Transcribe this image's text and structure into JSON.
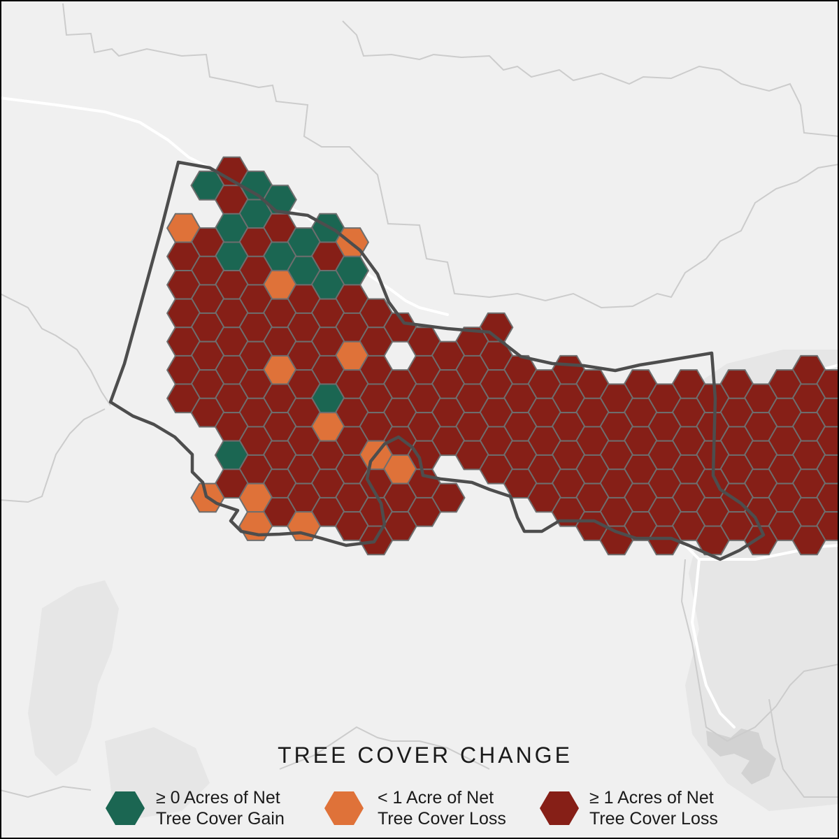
{
  "legend": {
    "title": "TREE COVER CHANGE",
    "items": [
      {
        "line1": "≥ 0 Acres of Net",
        "line2": "Tree Cover Gain",
        "color": "#1b6652"
      },
      {
        "line1": "< 1 Acre of Net",
        "line2": "Tree Cover Loss",
        "color": "#df7239"
      },
      {
        "line1": "≥ 1 Acres of Net",
        "line2": "Tree Cover Loss",
        "color": "#861f17"
      }
    ]
  },
  "colors": {
    "background": "#f0f0f0",
    "boundary": "#4d4d4d",
    "hex_stroke": "#6e6e6e",
    "roads": "#ffffff",
    "county_lines": "#cccccc"
  },
  "hex_grid": {
    "class_codes": {
      "G": "gain",
      "O": "small-loss",
      "R": "loss"
    },
    "rows": [
      "......R.............................",
      ".....GGG............................",
      ".....GRGG...........................",
      "......GGR...........................",
      "....ORGRR.G.........................",
      ".....RGRRGGO........................",
      "....RRGGGGR.........................",
      ".....RRRGGGG........................",
      "....RRRRORGR........................",
      ".....RRRRRRRR.......................",
      "....RRRRRRRRR.......................",
      "....GRRRRRRRRR..RR..................",
      "....RRRORGRRRRRRRR..................",
      "....RRRRRRROR.RRRRR.................",
      "...ORRRRORRRRRRRRRRRR..R...O..R.....",
      "....ORRRRRRRRRRRRRRRRRRRRRRRRRRRRR..",
      "...GRRRRRRGRRRRRRRRRRRRRRRRRRRRRR...",
      "....RRRRRRRRRRRRRRRRRRRRRRRRRRRRRR..",
      ".....ORRRRORRRRRRRRRRRRRRRRRRRRRR...",
      "......RRRRRRRRRRRRRRRRRRRRRRRRRRRR..",
      ".....RGRRGROOGRRRRRRRRRRRRRRRRRROR..",
      "......RRRRRRROO..RRRRRRRRRRRRRRRRR..",
      "......RRRRRRRRRR..RRRRRRRRRRRRRRRR..",
      ".....OROORRRRRRR..RRRRRRRRRRRRRRRR..",
      "........RGRRRRR.....RRRRRRRRRRRRRRR.",
      ".......OROOROR......RRRRRRRRRRRRRRRR",
      "...........RR.........RRRRRORRRRR...",
      "..........R.R.........R.........RR.."
    ]
  }
}
